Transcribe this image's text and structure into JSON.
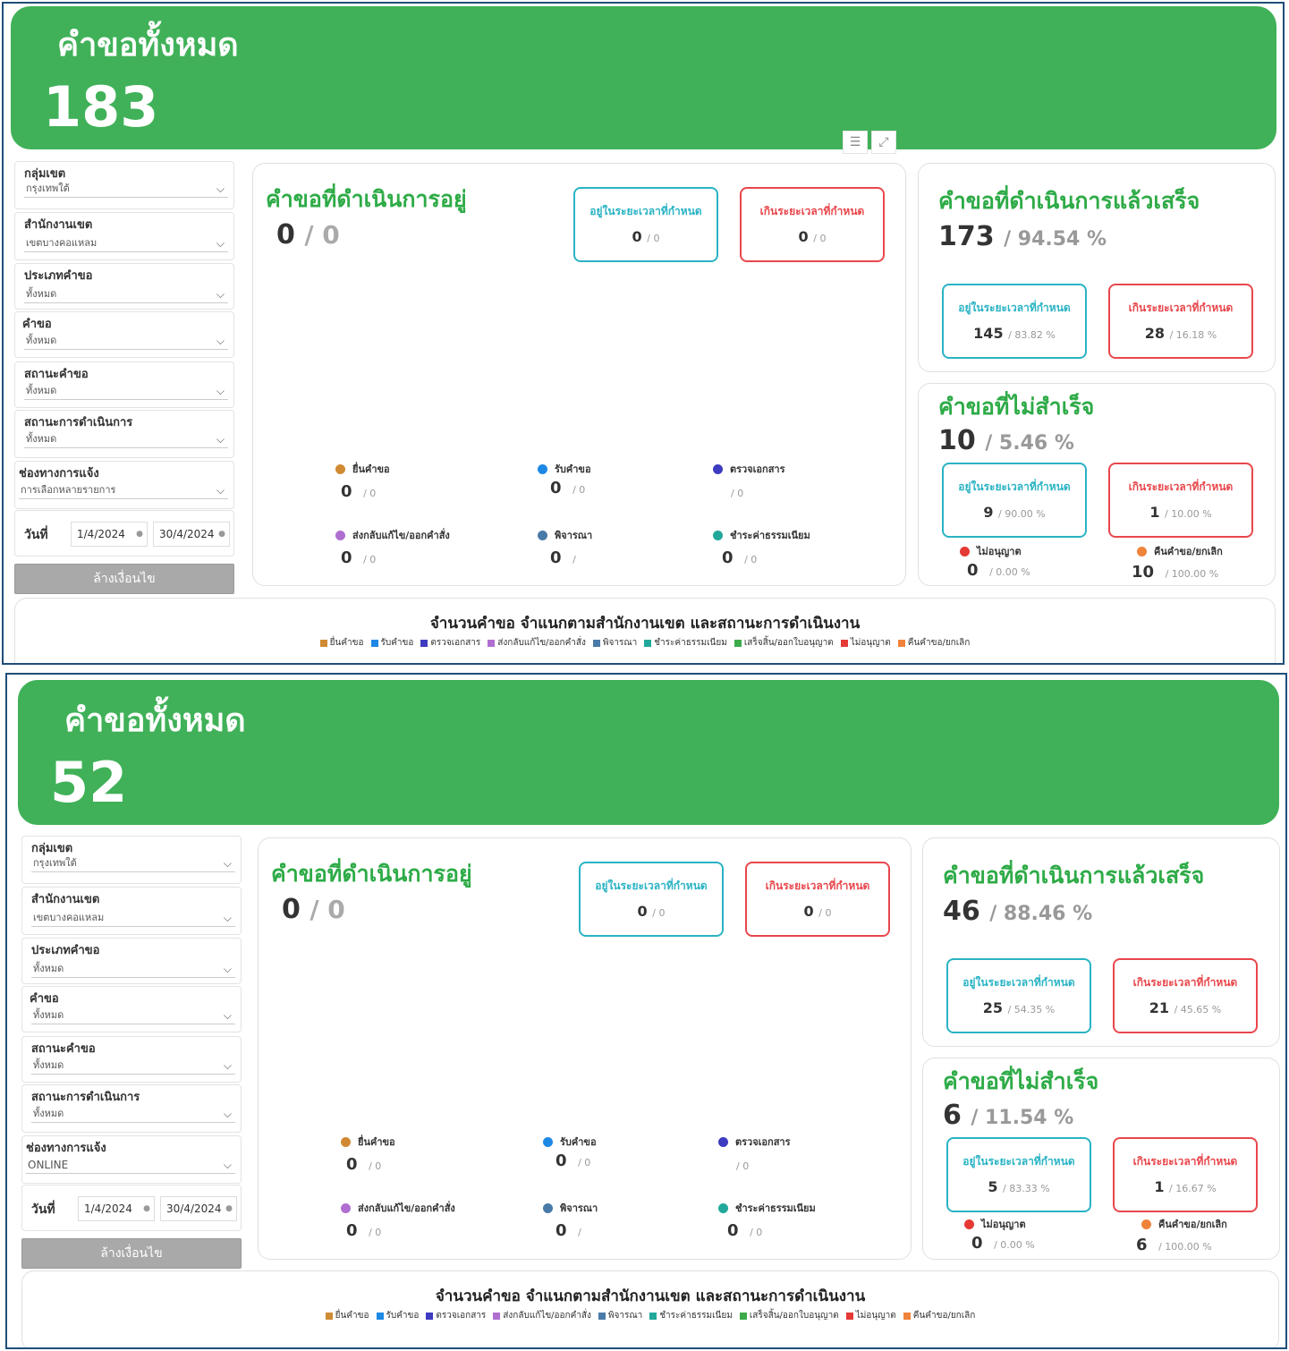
{
  "colors": {
    "green": "#40b158",
    "teal": "#2ab3c4",
    "red": "#e8474c",
    "status": [
      "#d08a34",
      "#1e88e5",
      "#3d3bbf",
      "#b06fd0",
      "#4a7aa8",
      "#21a89a",
      "#3dab4a",
      "#e53935",
      "#f0833a"
    ]
  },
  "dashboards": [
    {
      "header": {
        "title": "คำขอทั้งหมด",
        "count": "183"
      },
      "filters": [
        {
          "label": "กลุ่มเขต",
          "value": "กรุงเทพใต้"
        },
        {
          "label": "สำนักงานเขต",
          "value": "เขตบางคอแหลม"
        },
        {
          "label": "ประเภทคำขอ",
          "value": "ทั้งหมด"
        },
        {
          "label": "คำขอ",
          "value": "ทั้งหมด"
        },
        {
          "label": "สถานะคำขอ",
          "value": "ทั้งหมด"
        },
        {
          "label": "สถานะการดำเนินการ",
          "value": "ทั้งหมด"
        },
        {
          "label": "ช่องทางการแจ้ง",
          "value": "การเลือกหลายรายการ"
        }
      ],
      "date": {
        "label": "วันที่",
        "from": "1/4/2024",
        "to": "30/4/2024"
      },
      "clear_label": "ล้างเงื่อนไข",
      "in_progress": {
        "title": "คำขอที่ดำเนินการอยู่",
        "value": "0",
        "sub": "/ 0",
        "on_time": {
          "label": "อยู่ในระยะเวลาที่กำหนด",
          "value": "0",
          "sub": "/ 0"
        },
        "overdue": {
          "label": "เกินระยะเวลาที่กำหนด",
          "value": "0",
          "sub": "/ 0"
        },
        "statuses": [
          {
            "name": "ยื่นคำขอ",
            "value": "0",
            "sub": "/ 0"
          },
          {
            "name": "รับคำขอ",
            "value": "0",
            "sub": "/ 0"
          },
          {
            "name": "ตรวจเอกสาร",
            "value": "",
            "sub": "/ 0"
          },
          {
            "name": "ส่งกลับแก้ไข/ออกคำสั่ง",
            "value": "0",
            "sub": "/ 0"
          },
          {
            "name": "พิจารณา",
            "value": "0",
            "sub": "/"
          },
          {
            "name": "ชำระค่าธรรมเนียม",
            "value": "0",
            "sub": "/ 0"
          }
        ]
      },
      "completed": {
        "title": "คำขอที่ดำเนินการแล้วเสร็จ",
        "value": "173",
        "sub": "/ 94.54 %",
        "on_time": {
          "label": "อยู่ในระยะเวลาที่กำหนด",
          "value": "145",
          "sub": "/ 83.82 %"
        },
        "overdue": {
          "label": "เกินระยะเวลาที่กำหนด",
          "value": "28",
          "sub": "/ 16.18 %"
        }
      },
      "failed": {
        "title": "คำขอที่ไม่สำเร็จ",
        "value": "10",
        "sub": "/ 5.46 %",
        "on_time": {
          "label": "อยู่ในระยะเวลาที่กำหนด",
          "value": "9",
          "sub": "/ 90.00 %"
        },
        "overdue": {
          "label": "เกินระยะเวลาที่กำหนด",
          "value": "1",
          "sub": "/ 10.00 %"
        },
        "denied": {
          "name": "ไม่อนุญาต",
          "value": "0",
          "sub": "/ 0.00 %"
        },
        "cancelled": {
          "name": "คืนคำขอ/ยกเลิก",
          "value": "10",
          "sub": "/ 100.00 %"
        }
      },
      "chart": {
        "title": "จำนวนคำขอ  จำแนกตามสำนักงานเขต และสถานะการดำเนินงาน",
        "legend": [
          "ยื่นคำขอ",
          "รับคำขอ",
          "ตรวจเอกสาร",
          "ส่งกลับแก้ไข/ออกคำสั่ง",
          "พิจารณา",
          "ชำระค่าธรรมเนียม",
          "เสร็จสิ้น/ออกใบอนุญาต",
          "ไม่อนุญาต",
          "คืนคำขอ/ยกเลิก"
        ]
      }
    },
    {
      "header": {
        "title": "คำขอทั้งหมด",
        "count": "52"
      },
      "filters": [
        {
          "label": "กลุ่มเขต",
          "value": "กรุงเทพใต้"
        },
        {
          "label": "สำนักงานเขต",
          "value": "เขตบางคอแหลม"
        },
        {
          "label": "ประเภทคำขอ",
          "value": "ทั้งหมด"
        },
        {
          "label": "คำขอ",
          "value": "ทั้งหมด"
        },
        {
          "label": "สถานะคำขอ",
          "value": "ทั้งหมด"
        },
        {
          "label": "สถานะการดำเนินการ",
          "value": "ทั้งหมด"
        },
        {
          "label": "ช่องทางการแจ้ง",
          "value": "ONLINE"
        }
      ],
      "date": {
        "label": "วันที่",
        "from": "1/4/2024",
        "to": "30/4/2024"
      },
      "clear_label": "ล้างเงื่อนไข",
      "in_progress": {
        "title": "คำขอที่ดำเนินการอยู่",
        "value": "0",
        "sub": "/ 0",
        "on_time": {
          "label": "อยู่ในระยะเวลาที่กำหนด",
          "value": "0",
          "sub": "/ 0"
        },
        "overdue": {
          "label": "เกินระยะเวลาที่กำหนด",
          "value": "0",
          "sub": "/ 0"
        },
        "statuses": [
          {
            "name": "ยื่นคำขอ",
            "value": "0",
            "sub": "/ 0"
          },
          {
            "name": "รับคำขอ",
            "value": "0",
            "sub": "/ 0"
          },
          {
            "name": "ตรวจเอกสาร",
            "value": "",
            "sub": "/ 0"
          },
          {
            "name": "ส่งกลับแก้ไข/ออกคำสั่ง",
            "value": "0",
            "sub": "/ 0"
          },
          {
            "name": "พิจารณา",
            "value": "0",
            "sub": "/"
          },
          {
            "name": "ชำระค่าธรรมเนียม",
            "value": "0",
            "sub": "/ 0"
          }
        ]
      },
      "completed": {
        "title": "คำขอที่ดำเนินการแล้วเสร็จ",
        "value": "46",
        "sub": "/ 88.46 %",
        "on_time": {
          "label": "อยู่ในระยะเวลาที่กำหนด",
          "value": "25",
          "sub": "/ 54.35 %"
        },
        "overdue": {
          "label": "เกินระยะเวลาที่กำหนด",
          "value": "21",
          "sub": "/ 45.65 %"
        }
      },
      "failed": {
        "title": "คำขอที่ไม่สำเร็จ",
        "value": "6",
        "sub": "/ 11.54 %",
        "on_time": {
          "label": "อยู่ในระยะเวลาที่กำหนด",
          "value": "5",
          "sub": "/ 83.33 %"
        },
        "overdue": {
          "label": "เกินระยะเวลาที่กำหนด",
          "value": "1",
          "sub": "/ 16.67 %"
        },
        "denied": {
          "name": "ไม่อนุญาต",
          "value": "0",
          "sub": "/ 0.00 %"
        },
        "cancelled": {
          "name": "คืนคำขอ/ยกเลิก",
          "value": "6",
          "sub": "/ 100.00 %"
        }
      },
      "chart": {
        "title": "จำนวนคำขอ  จำแนกตามสำนักงานเขต และสถานะการดำเนินงาน",
        "legend": [
          "ยื่นคำขอ",
          "รับคำขอ",
          "ตรวจเอกสาร",
          "ส่งกลับแก้ไข/ออกคำสั่ง",
          "พิจารณา",
          "ชำระค่าธรรมเนียม",
          "เสร็จสิ้น/ออกใบอนุญาต",
          "ไม่อนุญาต",
          "คืนคำขอ/ยกเลิก"
        ]
      }
    }
  ]
}
